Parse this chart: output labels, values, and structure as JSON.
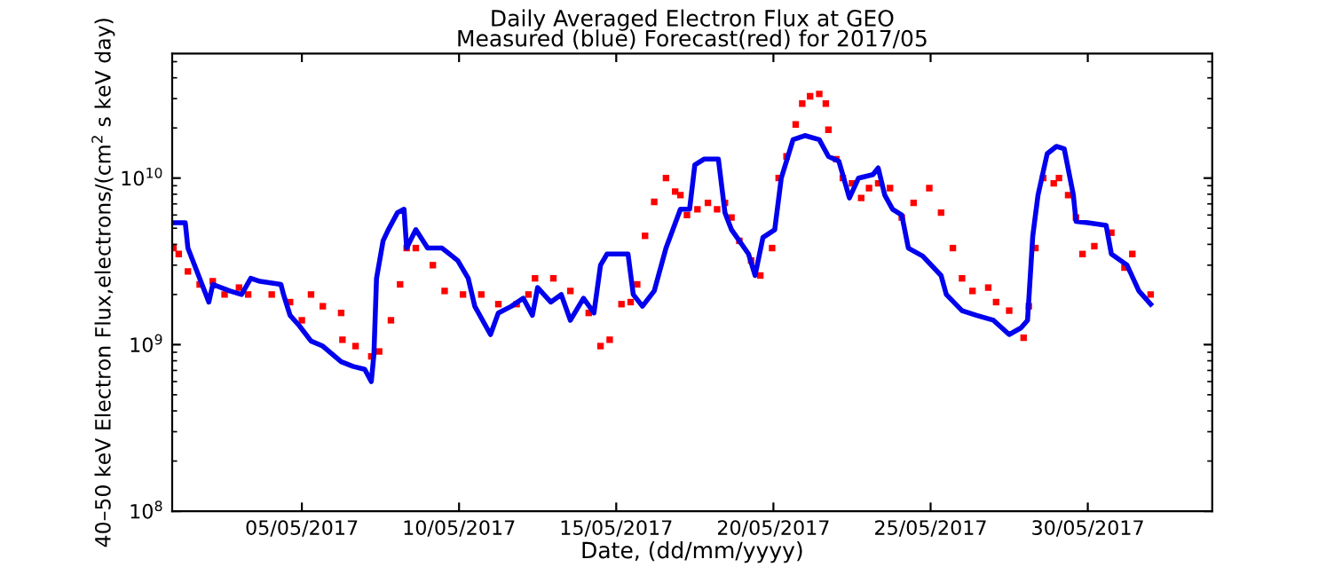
{
  "chart_data": {
    "type": "line",
    "title": "Daily Averaged Electron Flux at GEO",
    "subtitle": "Measured (blue) Forecast(red) for 2017/05",
    "xlabel": "Date, (dd/mm/yyyy)",
    "ylabel": "40–50 keV Electron Flux,electrons/(cm$^{2}$ s keV day)",
    "log": "y",
    "grid": false,
    "xlim": [
      "2017-04-30T21:00",
      "2017-06-02T23:00"
    ],
    "xticks": [
      {
        "value": "2017-05-05",
        "label": "05/05/2017"
      },
      {
        "value": "2017-05-10",
        "label": "10/05/2017"
      },
      {
        "value": "2017-05-15",
        "label": "15/05/2017"
      },
      {
        "value": "2017-05-20",
        "label": "20/05/2017"
      },
      {
        "value": "2017-05-25",
        "label": "25/05/2017"
      },
      {
        "value": "2017-05-30",
        "label": "30/05/2017"
      }
    ],
    "ylim": [
      100000000.0,
      56000000000.0
    ],
    "yticks": [
      {
        "value": 100000000.0,
        "label": "10$^{8}$"
      },
      {
        "value": 1000000000.0,
        "label": "10$^{9}$"
      },
      {
        "value": 10000000000.0,
        "label": "10$^{10}$"
      }
    ],
    "series": [
      {
        "color": "#0000ee",
        "line_style": "solid",
        "marker": "none",
        "x": [
          "2017-04-30T22:00",
          "2017-05-01T07:00",
          "2017-05-01T09:00",
          "2017-05-01T18:00",
          "2017-05-02T01:00",
          "2017-05-02T04:00",
          "2017-05-02T17:00",
          "2017-05-03T02:00",
          "2017-05-03T09:00",
          "2017-05-03T16:00",
          "2017-05-04T08:00",
          "2017-05-04T10:00",
          "2017-05-04T15:00",
          "2017-05-04T22:00",
          "2017-05-05T07:00",
          "2017-05-05T16:00",
          "2017-05-06T06:00",
          "2017-05-06T15:00",
          "2017-05-07T00:00",
          "2017-05-07T05:00",
          "2017-05-07T07:00",
          "2017-05-07T09:00",
          "2017-05-07T14:00",
          "2017-05-07T18:00",
          "2017-05-08T01:00",
          "2017-05-08T06:00",
          "2017-05-08T08:00",
          "2017-05-08T15:00",
          "2017-05-09T00:00",
          "2017-05-09T11:00",
          "2017-05-09T23:00",
          "2017-05-10T07:00",
          "2017-05-10T12:00",
          "2017-05-11T00:00",
          "2017-05-11T06:00",
          "2017-05-11T16:00",
          "2017-05-12T01:00",
          "2017-05-12T08:00",
          "2017-05-12T12:00",
          "2017-05-12T22:00",
          "2017-05-13T06:00",
          "2017-05-13T13:00",
          "2017-05-13T23:00",
          "2017-05-14T07:00",
          "2017-05-14T12:00",
          "2017-05-14T17:00",
          "2017-05-15T09:00",
          "2017-05-15T13:00",
          "2017-05-15T20:00",
          "2017-05-16T05:00",
          "2017-05-16T14:00",
          "2017-05-17T01:00",
          "2017-05-17T08:00",
          "2017-05-17T12:00",
          "2017-05-17T19:00",
          "2017-05-18T06:00",
          "2017-05-18T11:00",
          "2017-05-18T16:00",
          "2017-05-18T22:00",
          "2017-05-19T05:00",
          "2017-05-19T10:00",
          "2017-05-19T16:00",
          "2017-05-20T01:00",
          "2017-05-20T06:00",
          "2017-05-20T15:00",
          "2017-05-21T00:00",
          "2017-05-21T11:00",
          "2017-05-21T18:00",
          "2017-05-22T02:00",
          "2017-05-22T10:00",
          "2017-05-22T17:00",
          "2017-05-23T04:00",
          "2017-05-23T08:00",
          "2017-05-23T13:00",
          "2017-05-23T19:00",
          "2017-05-24T02:00",
          "2017-05-24T07:00",
          "2017-05-24T18:00",
          "2017-05-25T08:00",
          "2017-05-25T12:00",
          "2017-05-26T00:00",
          "2017-05-26T11:00",
          "2017-05-27T00:00",
          "2017-05-27T12:00",
          "2017-05-27T21:00",
          "2017-05-28T02:00",
          "2017-05-28T06:00",
          "2017-05-28T10:00",
          "2017-05-28T17:00",
          "2017-05-29T00:00",
          "2017-05-29T06:00",
          "2017-05-29T13:00",
          "2017-05-29T15:00",
          "2017-05-30T00:00",
          "2017-05-30T14:00",
          "2017-05-30T18:00",
          "2017-05-31T06:00",
          "2017-05-31T15:00",
          "2017-06-01T00:00"
        ],
        "values": [
          5400000000.0,
          5400000000.0,
          3800000000.0,
          2500000000.0,
          1800000000.0,
          2300000000.0,
          2100000000.0,
          2000000000.0,
          2500000000.0,
          2400000000.0,
          2300000000.0,
          2000000000.0,
          1500000000.0,
          1300000000.0,
          1050000000.0,
          980000000.0,
          790000000.0,
          740000000.0,
          710000000.0,
          600000000.0,
          870000000.0,
          2500000000.0,
          4200000000.0,
          4900000000.0,
          6200000000.0,
          6500000000.0,
          3800000000.0,
          4900000000.0,
          3800000000.0,
          3800000000.0,
          3200000000.0,
          2500000000.0,
          1700000000.0,
          1150000000.0,
          1550000000.0,
          1700000000.0,
          1900000000.0,
          1500000000.0,
          2200000000.0,
          1800000000.0,
          2000000000.0,
          1400000000.0,
          1900000000.0,
          1550000000.0,
          3000000000.0,
          3500000000.0,
          3500000000.0,
          2000000000.0,
          1700000000.0,
          2100000000.0,
          3800000000.0,
          6500000000.0,
          6500000000.0,
          12000000000.0,
          13000000000.0,
          13000000000.0,
          6200000000.0,
          4900000000.0,
          4200000000.0,
          3500000000.0,
          2600000000.0,
          4400000000.0,
          4900000000.0,
          10000000000.0,
          17000000000.0,
          18000000000.0,
          17000000000.0,
          13500000000.0,
          12600000000.0,
          7600000000.0,
          10000000000.0,
          10500000000.0,
          11500000000.0,
          7900000000.0,
          6500000000.0,
          6000000000.0,
          3800000000.0,
          3400000000.0,
          2600000000.0,
          2000000000.0,
          1600000000.0,
          1500000000.0,
          1400000000.0,
          1150000000.0,
          1260000000.0,
          1400000000.0,
          4500000000.0,
          7900000000.0,
          14000000000.0,
          15500000000.0,
          15000000000.0,
          7900000000.0,
          5500000000.0,
          5400000000.0,
          5200000000.0,
          3500000000.0,
          3000000000.0,
          2100000000.0,
          1750000000.0
        ]
      },
      {
        "type": "scatter",
        "color": "#ff0000",
        "marker": "square",
        "x": [
          "2017-04-30T22:00",
          "2017-05-01T02:00",
          "2017-05-01T09:00",
          "2017-05-01T18:00",
          "2017-05-02T04:00",
          "2017-05-02T13:00",
          "2017-05-03T00:00",
          "2017-05-03T07:00",
          "2017-05-04T01:00",
          "2017-05-04T15:00",
          "2017-05-05T00:00",
          "2017-05-05T07:00",
          "2017-05-05T16:00",
          "2017-05-06T06:00",
          "2017-05-06T07:00",
          "2017-05-06T17:00",
          "2017-05-07T05:00",
          "2017-05-07T11:00",
          "2017-05-07T20:00",
          "2017-05-08T03:00",
          "2017-05-08T08:00",
          "2017-05-08T15:00",
          "2017-05-09T04:00",
          "2017-05-09T13:00",
          "2017-05-10T03:00",
          "2017-05-10T17:00",
          "2017-05-11T06:00",
          "2017-05-11T20:00",
          "2017-05-12T05:00",
          "2017-05-12T10:00",
          "2017-05-13T00:00",
          "2017-05-13T13:00",
          "2017-05-14T03:00",
          "2017-05-14T12:00",
          "2017-05-14T19:00",
          "2017-05-15T04:00",
          "2017-05-15T11:00",
          "2017-05-15T16:00",
          "2017-05-15T22:00",
          "2017-05-16T05:00",
          "2017-05-16T14:00",
          "2017-05-16T21:00",
          "2017-05-17T01:00",
          "2017-05-17T06:00",
          "2017-05-17T14:00",
          "2017-05-17T22:00",
          "2017-05-18T05:00",
          "2017-05-18T11:00",
          "2017-05-18T16:00",
          "2017-05-18T22:00",
          "2017-05-19T07:00",
          "2017-05-19T14:00",
          "2017-05-19T23:00",
          "2017-05-20T04:00",
          "2017-05-20T10:00",
          "2017-05-20T17:00",
          "2017-05-20T22:00",
          "2017-05-21T04:00",
          "2017-05-21T11:00",
          "2017-05-21T16:00",
          "2017-05-21T18:00",
          "2017-05-22T00:00",
          "2017-05-22T05:00",
          "2017-05-22T12:00",
          "2017-05-22T19:00",
          "2017-05-23T01:00",
          "2017-05-23T08:00",
          "2017-05-23T17:00",
          "2017-05-24T02:00",
          "2017-05-24T11:00",
          "2017-05-24T23:00",
          "2017-05-25T08:00",
          "2017-05-25T17:00",
          "2017-05-26T00:00",
          "2017-05-26T08:00",
          "2017-05-26T20:00",
          "2017-05-27T02:00",
          "2017-05-27T12:00",
          "2017-05-27T23:00",
          "2017-05-28T03:00",
          "2017-05-28T08:00",
          "2017-05-28T14:00",
          "2017-05-28T22:00",
          "2017-05-29T02:00",
          "2017-05-29T09:00",
          "2017-05-29T15:00",
          "2017-05-29T20:00",
          "2017-05-30T05:00",
          "2017-05-30T18:00",
          "2017-05-31T04:00",
          "2017-05-31T10:00",
          "2017-06-01T00:00"
        ],
        "values": [
          3800000000.0,
          3500000000.0,
          2750000000.0,
          2300000000.0,
          2400000000.0,
          2000000000.0,
          2200000000.0,
          2000000000.0,
          2000000000.0,
          1800000000.0,
          1400000000.0,
          2000000000.0,
          1700000000.0,
          1550000000.0,
          1070000000.0,
          980000000.0,
          850000000.0,
          910000000.0,
          1400000000.0,
          2300000000.0,
          3800000000.0,
          3800000000.0,
          3000000000.0,
          2100000000.0,
          2000000000.0,
          2000000000.0,
          1750000000.0,
          1750000000.0,
          2000000000.0,
          2500000000.0,
          2500000000.0,
          2100000000.0,
          1550000000.0,
          980000000.0,
          1070000000.0,
          1750000000.0,
          1800000000.0,
          2300000000.0,
          4500000000.0,
          7200000000.0,
          10000000000.0,
          8300000000.0,
          7900000000.0,
          6000000000.0,
          6500000000.0,
          7100000000.0,
          6500000000.0,
          7100000000.0,
          5800000000.0,
          4200000000.0,
          3200000000.0,
          2600000000.0,
          3800000000.0,
          10000000000.0,
          13500000000.0,
          21000000000.0,
          28000000000.0,
          31000000000.0,
          32000000000.0,
          28000000000.0,
          19500000000.0,
          13000000000.0,
          10000000000.0,
          9300000000.0,
          7600000000.0,
          8700000000.0,
          9300000000.0,
          8700000000.0,
          5800000000.0,
          7100000000.0,
          8700000000.0,
          6200000000.0,
          3800000000.0,
          2500000000.0,
          2100000000.0,
          2200000000.0,
          1800000000.0,
          1600000000.0,
          1100000000.0,
          1700000000.0,
          3800000000.0,
          10000000000.0,
          9300000000.0,
          10000000000.0,
          7900000000.0,
          5800000000.0,
          3500000000.0,
          3900000000.0,
          4700000000.0,
          2900000000.0,
          3500000000.0,
          2000000000.0
        ]
      }
    ]
  }
}
